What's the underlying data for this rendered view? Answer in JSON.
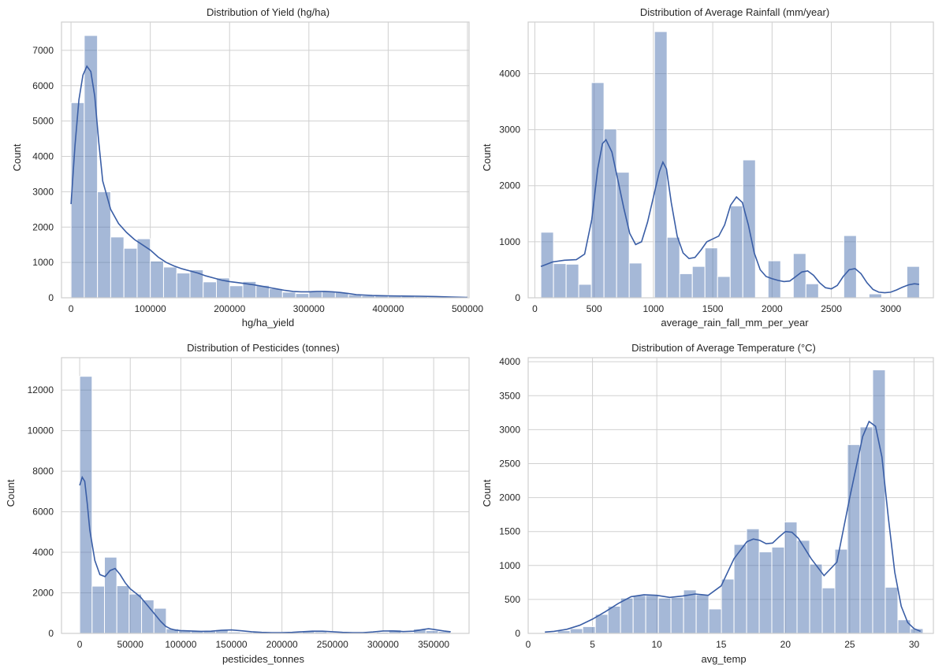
{
  "colors": {
    "bar": "#4c72b0",
    "kde": "#3a5ea6",
    "grid": "#d0d0d0",
    "frame": "#cfcfcf"
  },
  "chart_data": [
    {
      "type": "histogram",
      "title": "Distribution of Yield (hg/ha)",
      "xlabel": "hg/ha_yield",
      "ylabel": "Count",
      "xlim": [
        -12000,
        502000
      ],
      "ylim": [
        0,
        7800
      ],
      "xticks": [
        0,
        100000,
        200000,
        300000,
        400000,
        500000
      ],
      "yticks": [
        0,
        1000,
        2000,
        3000,
        4000,
        5000,
        6000,
        7000
      ],
      "bin_start": 50,
      "bin_width": 16665,
      "counts": [
        5520,
        7420,
        3000,
        1720,
        1400,
        1670,
        1040,
        870,
        700,
        790,
        450,
        560,
        340,
        460,
        350,
        260,
        160,
        120,
        170,
        180,
        150,
        90,
        60,
        80,
        70,
        60,
        40,
        30,
        15,
        10
      ],
      "kde": [
        [
          50,
          2650
        ],
        [
          5000,
          4300
        ],
        [
          10000,
          5600
        ],
        [
          15000,
          6300
        ],
        [
          20000,
          6550
        ],
        [
          25000,
          6400
        ],
        [
          30000,
          5700
        ],
        [
          35000,
          4400
        ],
        [
          40000,
          3300
        ],
        [
          50000,
          2500
        ],
        [
          60000,
          2100
        ],
        [
          70000,
          1850
        ],
        [
          80000,
          1650
        ],
        [
          90000,
          1500
        ],
        [
          100000,
          1350
        ],
        [
          110000,
          1150
        ],
        [
          120000,
          1000
        ],
        [
          130000,
          900
        ],
        [
          140000,
          820
        ],
        [
          150000,
          760
        ],
        [
          160000,
          700
        ],
        [
          170000,
          620
        ],
        [
          180000,
          560
        ],
        [
          190000,
          500
        ],
        [
          200000,
          460
        ],
        [
          210000,
          430
        ],
        [
          220000,
          400
        ],
        [
          230000,
          370
        ],
        [
          240000,
          330
        ],
        [
          250000,
          290
        ],
        [
          260000,
          250
        ],
        [
          270000,
          210
        ],
        [
          280000,
          180
        ],
        [
          290000,
          170
        ],
        [
          300000,
          170
        ],
        [
          310000,
          180
        ],
        [
          320000,
          180
        ],
        [
          330000,
          170
        ],
        [
          340000,
          150
        ],
        [
          350000,
          120
        ],
        [
          360000,
          90
        ],
        [
          370000,
          75
        ],
        [
          380000,
          65
        ],
        [
          400000,
          55
        ],
        [
          420000,
          50
        ],
        [
          440000,
          45
        ],
        [
          460000,
          35
        ],
        [
          480000,
          20
        ],
        [
          500000,
          10
        ]
      ],
      "grid": true
    },
    {
      "type": "histogram",
      "title": "Distribution of Average Rainfall (mm/year)",
      "xlabel": "average_rain_fall_mm_per_year",
      "ylabel": "Count",
      "xlim": [
        -56,
        3360
      ],
      "ylim": [
        0,
        4920
      ],
      "xticks": [
        0,
        500,
        1000,
        1500,
        2000,
        2500,
        3000
      ],
      "yticks": [
        0,
        1000,
        2000,
        3000,
        4000
      ],
      "bin_start": 51,
      "bin_width": 106.4,
      "counts": [
        1170,
        610,
        600,
        240,
        3840,
        3010,
        2240,
        620,
        0,
        4750,
        1080,
        430,
        560,
        890,
        380,
        1640,
        2460,
        0,
        660,
        0,
        790,
        250,
        0,
        0,
        1110,
        0,
        70,
        0,
        0,
        560
      ],
      "kde": [
        [
          51,
          560
        ],
        [
          150,
          640
        ],
        [
          250,
          670
        ],
        [
          350,
          680
        ],
        [
          420,
          780
        ],
        [
          480,
          1400
        ],
        [
          530,
          2300
        ],
        [
          570,
          2750
        ],
        [
          600,
          2820
        ],
        [
          650,
          2600
        ],
        [
          700,
          2100
        ],
        [
          750,
          1600
        ],
        [
          800,
          1150
        ],
        [
          850,
          950
        ],
        [
          900,
          1000
        ],
        [
          950,
          1350
        ],
        [
          1000,
          1800
        ],
        [
          1050,
          2250
        ],
        [
          1080,
          2420
        ],
        [
          1110,
          2300
        ],
        [
          1150,
          1700
        ],
        [
          1200,
          1100
        ],
        [
          1250,
          800
        ],
        [
          1300,
          700
        ],
        [
          1350,
          720
        ],
        [
          1400,
          850
        ],
        [
          1450,
          1000
        ],
        [
          1500,
          1050
        ],
        [
          1550,
          1100
        ],
        [
          1600,
          1300
        ],
        [
          1650,
          1650
        ],
        [
          1700,
          1800
        ],
        [
          1750,
          1700
        ],
        [
          1800,
          1300
        ],
        [
          1850,
          800
        ],
        [
          1900,
          500
        ],
        [
          1950,
          380
        ],
        [
          2000,
          340
        ],
        [
          2050,
          310
        ],
        [
          2100,
          290
        ],
        [
          2150,
          300
        ],
        [
          2200,
          380
        ],
        [
          2250,
          460
        ],
        [
          2300,
          480
        ],
        [
          2350,
          400
        ],
        [
          2400,
          270
        ],
        [
          2450,
          180
        ],
        [
          2500,
          160
        ],
        [
          2550,
          220
        ],
        [
          2600,
          380
        ],
        [
          2650,
          500
        ],
        [
          2700,
          520
        ],
        [
          2750,
          430
        ],
        [
          2800,
          270
        ],
        [
          2850,
          150
        ],
        [
          2900,
          100
        ],
        [
          2950,
          90
        ],
        [
          3000,
          100
        ],
        [
          3050,
          140
        ],
        [
          3100,
          190
        ],
        [
          3150,
          230
        ],
        [
          3200,
          250
        ],
        [
          3240,
          240
        ]
      ],
      "grid": true
    },
    {
      "type": "histogram",
      "title": "Distribution of Pesticides (tonnes)",
      "xlabel": "pesticides_tonnes",
      "ylabel": "Count",
      "xlim": [
        -18000,
        385000
      ],
      "ylim": [
        0,
        13600
      ],
      "xticks": [
        0,
        50000,
        100000,
        150000,
        200000,
        250000,
        300000,
        350000
      ],
      "yticks": [
        0,
        2000,
        4000,
        6000,
        8000,
        10000,
        12000
      ],
      "bin_start": 40,
      "bin_width": 12225,
      "counts": [
        12680,
        2330,
        3760,
        2350,
        1940,
        1650,
        1240,
        230,
        160,
        130,
        110,
        180,
        70,
        50,
        60,
        50,
        40,
        50,
        120,
        80,
        40,
        30,
        20,
        30,
        60,
        180,
        50,
        220,
        140,
        90
      ],
      "kde": [
        [
          40,
          7300
        ],
        [
          2500,
          7700
        ],
        [
          5000,
          7500
        ],
        [
          7500,
          6400
        ],
        [
          10000,
          5100
        ],
        [
          15000,
          3600
        ],
        [
          20000,
          2900
        ],
        [
          25000,
          2800
        ],
        [
          30000,
          3100
        ],
        [
          35000,
          3200
        ],
        [
          40000,
          2900
        ],
        [
          45000,
          2500
        ],
        [
          50000,
          2200
        ],
        [
          55000,
          2000
        ],
        [
          60000,
          1800
        ],
        [
          65000,
          1500
        ],
        [
          70000,
          1200
        ],
        [
          75000,
          900
        ],
        [
          80000,
          600
        ],
        [
          85000,
          350
        ],
        [
          90000,
          220
        ],
        [
          95000,
          160
        ],
        [
          100000,
          140
        ],
        [
          110000,
          120
        ],
        [
          120000,
          100
        ],
        [
          130000,
          110
        ],
        [
          140000,
          150
        ],
        [
          150000,
          170
        ],
        [
          160000,
          130
        ],
        [
          170000,
          80
        ],
        [
          180000,
          50
        ],
        [
          190000,
          40
        ],
        [
          200000,
          40
        ],
        [
          210000,
          50
        ],
        [
          220000,
          80
        ],
        [
          230000,
          110
        ],
        [
          240000,
          110
        ],
        [
          250000,
          80
        ],
        [
          260000,
          50
        ],
        [
          270000,
          40
        ],
        [
          280000,
          40
        ],
        [
          290000,
          70
        ],
        [
          300000,
          120
        ],
        [
          310000,
          120
        ],
        [
          320000,
          90
        ],
        [
          330000,
          110
        ],
        [
          340000,
          200
        ],
        [
          345000,
          230
        ],
        [
          350000,
          200
        ],
        [
          360000,
          120
        ],
        [
          366800,
          80
        ]
      ],
      "grid": true
    },
    {
      "type": "histogram",
      "title": "Distribution of Average Temperature (°C)",
      "xlabel": "avg_temp",
      "ylabel": "Count",
      "xlim": [
        0,
        31.5
      ],
      "ylim": [
        0,
        4060
      ],
      "xticks": [
        0,
        5,
        10,
        15,
        20,
        25,
        30
      ],
      "yticks": [
        0,
        500,
        1000,
        1500,
        2000,
        2500,
        3000,
        3500,
        4000
      ],
      "bin_start": 1.3,
      "bin_width": 0.98,
      "counts": [
        10,
        40,
        70,
        100,
        280,
        400,
        520,
        560,
        560,
        520,
        530,
        640,
        570,
        360,
        800,
        1310,
        1540,
        1200,
        1270,
        1640,
        1370,
        1020,
        670,
        1240,
        2780,
        3040,
        3880,
        680,
        200,
        70
      ],
      "kde": [
        [
          1.3,
          20
        ],
        [
          2,
          30
        ],
        [
          3,
          60
        ],
        [
          4,
          120
        ],
        [
          5,
          210
        ],
        [
          6,
          320
        ],
        [
          7,
          440
        ],
        [
          8,
          540
        ],
        [
          9,
          570
        ],
        [
          10,
          560
        ],
        [
          11,
          530
        ],
        [
          12,
          550
        ],
        [
          13,
          580
        ],
        [
          14,
          560
        ],
        [
          15,
          700
        ],
        [
          16,
          1100
        ],
        [
          17,
          1350
        ],
        [
          17.5,
          1390
        ],
        [
          18,
          1370
        ],
        [
          18.5,
          1320
        ],
        [
          19,
          1330
        ],
        [
          19.5,
          1420
        ],
        [
          20,
          1500
        ],
        [
          20.5,
          1490
        ],
        [
          21,
          1400
        ],
        [
          22,
          1100
        ],
        [
          23,
          850
        ],
        [
          24,
          1050
        ],
        [
          25,
          2000
        ],
        [
          26,
          2900
        ],
        [
          26.5,
          3120
        ],
        [
          27,
          3050
        ],
        [
          27.5,
          2600
        ],
        [
          28,
          1700
        ],
        [
          28.5,
          900
        ],
        [
          29,
          400
        ],
        [
          29.5,
          160
        ],
        [
          30,
          70
        ],
        [
          30.5,
          30
        ]
      ],
      "grid": true
    }
  ]
}
